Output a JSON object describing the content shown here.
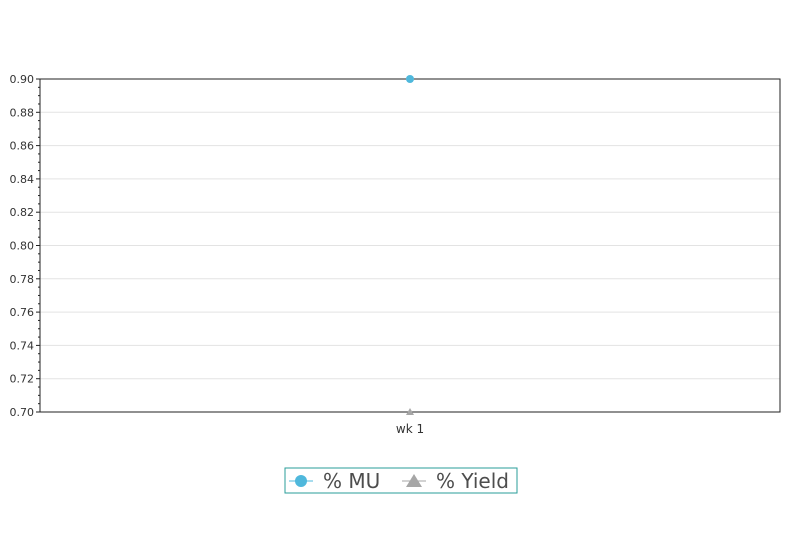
{
  "chart_data": {
    "type": "line",
    "title": "",
    "xlabel": "",
    "ylabel": "",
    "categories": [
      "wk 1"
    ],
    "ylim": [
      0.7,
      0.9
    ],
    "yticks": [
      "0.70",
      "0.72",
      "0.74",
      "0.76",
      "0.78",
      "0.80",
      "0.82",
      "0.84",
      "0.86",
      "0.88",
      "0.90"
    ],
    "grid": true,
    "legend_position": "bottom-center",
    "series": [
      {
        "name": "% MU",
        "values": [
          0.9
        ],
        "marker": "circle",
        "color": "#4fb8dc"
      },
      {
        "name": "% Yield",
        "values": [
          0.7
        ],
        "marker": "triangle",
        "color": "#a6a6a6"
      }
    ],
    "legend_border_color": "#2a9d9a"
  }
}
